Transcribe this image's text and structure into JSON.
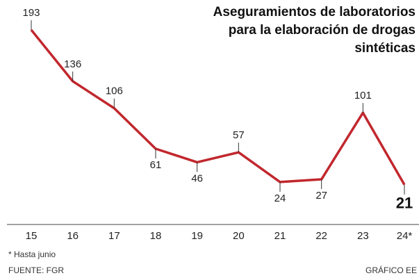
{
  "chart_data": {
    "type": "line",
    "title": [
      "Aseguramientos de laboratorios",
      "para la elaboración de drogas",
      "sintéticas"
    ],
    "categories": [
      "15",
      "16",
      "17",
      "18",
      "19",
      "20",
      "21",
      "22",
      "23",
      "24*"
    ],
    "series": [
      {
        "color": "#c1272d",
        "values": [
          193,
          136,
          106,
          61,
          46,
          57,
          24,
          27,
          101,
          21
        ]
      }
    ],
    "ylim": [
      0,
      200
    ],
    "footnote": "* Hasta junio",
    "source": "FUENTE: FGR",
    "credit": "GRÁFICO EE"
  }
}
